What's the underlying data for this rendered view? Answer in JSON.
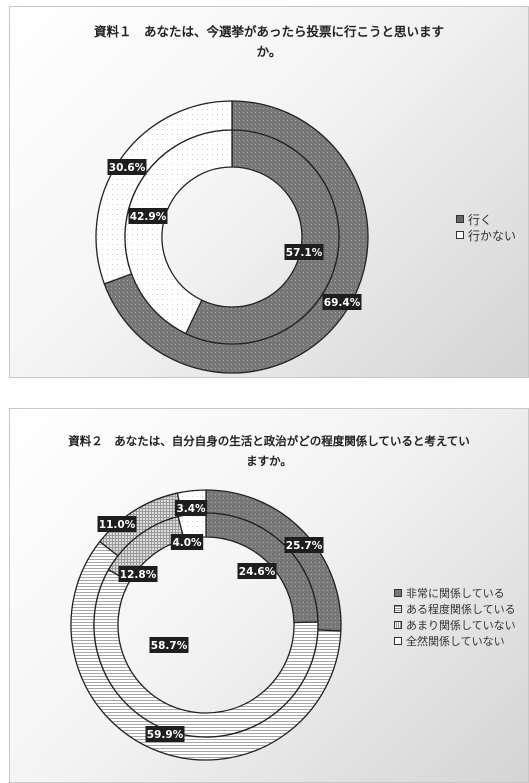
{
  "chart_data": [
    {
      "type": "pie",
      "title_line1": "資料１　あなたは、今選挙があったら投票に行こうと思います",
      "title_line2": "か。",
      "categories": [
        "行く",
        "行かない"
      ],
      "colors": [
        "#777777",
        "#ffffff"
      ],
      "series": [
        {
          "values": [
            69.4,
            30.6
          ],
          "labels": [
            "69.4%",
            "30.6%"
          ]
        },
        {
          "values": [
            57.1,
            42.9
          ],
          "labels": [
            "57.1%",
            "42.9%"
          ]
        }
      ],
      "legend_position": "right"
    },
    {
      "type": "pie",
      "title_line1": "資料２　あなたは、自分自身の生活と政治がどの程度関係していると考えてい",
      "title_line2": "ますか。",
      "categories": [
        "非常に関係している",
        "ある程度関係している",
        "あまり関係していない",
        "全然関係していない"
      ],
      "colors": [
        "#7a7a7a",
        "#ffffff",
        "#e6e6e6",
        "#ffffff"
      ],
      "series": [
        {
          "values": [
            25.7,
            59.9,
            11.0,
            3.4
          ],
          "labels": [
            "25.7%",
            "59.9%",
            "11.0%",
            "3.4%"
          ]
        },
        {
          "values": [
            24.6,
            58.7,
            12.8,
            4.0
          ],
          "labels": [
            "24.6%",
            "58.7%",
            "12.8%",
            "4.0%"
          ]
        }
      ],
      "legend_position": "right"
    }
  ]
}
